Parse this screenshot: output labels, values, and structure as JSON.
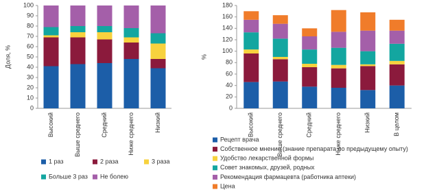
{
  "chart_data": [
    {
      "type": "stacked_bar",
      "ylabel": "Доля, %",
      "categories": [
        "Высокий",
        "Выше среднего",
        "Средний",
        "Ниже среднего",
        "Низкий"
      ],
      "ylim": [
        0,
        100
      ],
      "yticks": [
        0,
        10,
        20,
        30,
        40,
        50,
        60,
        70,
        80,
        90,
        100
      ],
      "series": [
        {
          "name": "1 раз",
          "color": "#1c5ea8",
          "values": [
            41,
            43,
            44,
            48,
            39
          ]
        },
        {
          "name": "2 раза",
          "color": "#8b1a3c",
          "values": [
            28,
            26,
            23,
            16,
            9
          ]
        },
        {
          "name": "3 раза",
          "color": "#f7d23e",
          "values": [
            2,
            5,
            7,
            5,
            15
          ]
        },
        {
          "name": "Больше 3 раз",
          "color": "#13a6a0",
          "values": [
            8,
            6,
            6,
            9,
            10
          ]
        },
        {
          "name": "Не болею",
          "color": "#a45fa9",
          "values": [
            21,
            20,
            20,
            22,
            27
          ]
        }
      ]
    },
    {
      "type": "stacked_bar",
      "ylabel": "%",
      "categories": [
        "Высокий",
        "Выше среднего",
        "Средний",
        "Ниже среднего",
        "Низкий",
        "В целом"
      ],
      "ylim": [
        0,
        180
      ],
      "yticks": [
        0,
        20,
        40,
        60,
        80,
        100,
        120,
        140,
        160,
        180
      ],
      "series": [
        {
          "name": "Рецепт врача",
          "color": "#1c5ea8",
          "values": [
            46,
            47,
            38,
            36,
            32,
            40
          ]
        },
        {
          "name": "Собственное мнение (знание препарата по предыдущему опыту)",
          "color": "#8b1a3c",
          "values": [
            50,
            39,
            34,
            34,
            42,
            37
          ]
        },
        {
          "name": "Удобство лекарственной формы",
          "color": "#f7d23e",
          "values": [
            7,
            4,
            6,
            6,
            3,
            6
          ]
        },
        {
          "name": "Совет знакомых, друзей, родных",
          "color": "#13a6a0",
          "values": [
            30,
            32,
            25,
            30,
            23,
            30
          ]
        },
        {
          "name": "Рекомендация фармацевта (работника аптеки)",
          "color": "#a45fa9",
          "values": [
            22,
            26,
            23,
            28,
            36,
            23
          ]
        },
        {
          "name": "Цена",
          "color": "#f07c2a",
          "values": [
            15,
            15,
            14,
            38,
            32,
            19
          ]
        }
      ]
    }
  ]
}
